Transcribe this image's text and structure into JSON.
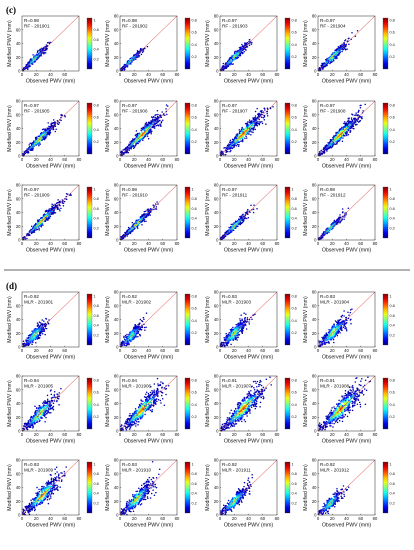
{
  "figure": {
    "sep_line": true,
    "panels": [
      {
        "label": "(c)",
        "model": "RF",
        "subplots": [
          {
            "r": "R=0.98",
            "name": "RF - 201901",
            "density": 0.3,
            "spread": 0.06,
            "cbmax": 1,
            "xticks": [
              "0",
              "20",
              "40",
              "60"
            ],
            "yticks": [
              "0",
              "20",
              "40",
              "60"
            ]
          },
          {
            "r": "R=0.98",
            "name": "RF - 201902",
            "density": 0.22,
            "spread": 0.05,
            "cbmax": 0.8,
            "xticks": [
              "0",
              "20",
              "40",
              "60",
              "80"
            ],
            "yticks": [
              "0",
              "20",
              "40",
              "60",
              "80"
            ]
          },
          {
            "r": "R=0.97",
            "name": "RF - 201903",
            "density": 0.4,
            "spread": 0.07,
            "cbmax": 0.8,
            "xticks": [
              "0",
              "20",
              "40",
              "60",
              "80"
            ],
            "yticks": [
              "0",
              "20",
              "40",
              "60",
              "80"
            ]
          },
          {
            "r": "R=0.97",
            "name": "RF - 201904",
            "density": 0.45,
            "spread": 0.07,
            "cbmax": 0.8,
            "xticks": [
              "0",
              "20",
              "40",
              "60",
              "80"
            ],
            "yticks": [
              "0",
              "20",
              "40",
              "60",
              "80"
            ]
          },
          {
            "r": "R=0.97",
            "name": "RF - 201905",
            "density": 0.6,
            "spread": 0.08,
            "cbmax": 0.8,
            "xticks": [
              "0",
              "20",
              "40",
              "60",
              "80"
            ],
            "yticks": [
              "0",
              "20",
              "40",
              "60",
              "80"
            ]
          },
          {
            "r": "R=0.97",
            "name": "RF - 201906",
            "density": 0.85,
            "spread": 0.09,
            "cbmax": 0.8,
            "xticks": [
              "0",
              "20",
              "40",
              "60",
              "80"
            ],
            "yticks": [
              "0",
              "20",
              "40",
              "60",
              "80"
            ]
          },
          {
            "r": "R=0.97",
            "name": "RF - 201907",
            "density": 0.9,
            "spread": 0.1,
            "cbmax": 0.8,
            "xticks": [
              "0",
              "20",
              "40",
              "60",
              "80"
            ],
            "yticks": [
              "0",
              "20",
              "40",
              "60",
              "80"
            ]
          },
          {
            "r": "R=0.97",
            "name": "RF - 201908",
            "density": 0.85,
            "spread": 0.09,
            "cbmax": 0.8,
            "xticks": [
              "0",
              "20",
              "40",
              "60",
              "80"
            ],
            "yticks": [
              "0",
              "20",
              "40",
              "60",
              "80"
            ]
          },
          {
            "r": "R=0.97",
            "name": "RF - 201909",
            "density": 0.75,
            "spread": 0.07,
            "cbmax": 1,
            "xticks": [
              "0",
              "20",
              "40",
              "60",
              "80"
            ],
            "yticks": [
              "0",
              "20",
              "40",
              "60",
              "80"
            ]
          },
          {
            "r": "R=0.98",
            "name": "RF - 201910",
            "density": 0.55,
            "spread": 0.06,
            "cbmax": 1,
            "xticks": [
              "0",
              "20",
              "40",
              "60",
              "80"
            ],
            "yticks": [
              "0",
              "20",
              "40",
              "60",
              "80"
            ]
          },
          {
            "r": "R=0.97",
            "name": "RF - 201911",
            "density": 0.4,
            "spread": 0.06,
            "cbmax": 1,
            "xticks": [
              "0",
              "20",
              "40",
              "60",
              "80"
            ],
            "yticks": [
              "0",
              "20",
              "40",
              "60",
              "80"
            ]
          },
          {
            "r": "R=0.98",
            "name": "RF - 201912",
            "density": 0.3,
            "spread": 0.05,
            "cbmax": 1,
            "xticks": [
              "0",
              "20",
              "40",
              "60",
              "80"
            ],
            "yticks": [
              "0",
              "20",
              "40",
              "60",
              "80"
            ]
          }
        ]
      },
      {
        "label": "(d)",
        "model": "MLR",
        "subplots": [
          {
            "r": "R=0.92",
            "name": "MLR - 201901",
            "density": 0.3,
            "spread": 0.12,
            "cbmax": 1,
            "xticks": [
              "0",
              "20",
              "40",
              "60"
            ],
            "yticks": [
              "0",
              "20",
              "40",
              "60"
            ]
          },
          {
            "r": "R=0.92",
            "name": "MLR - 201902",
            "density": 0.25,
            "spread": 0.12,
            "cbmax": 0.8,
            "xticks": [
              "0",
              "20",
              "40",
              "60",
              "80"
            ],
            "yticks": [
              "0",
              "20",
              "40",
              "60",
              "80"
            ]
          },
          {
            "r": "R=0.93",
            "name": "MLR - 201903",
            "density": 0.4,
            "spread": 0.13,
            "cbmax": 0.8,
            "xticks": [
              "0",
              "20",
              "40",
              "60",
              "80"
            ],
            "yticks": [
              "0",
              "20",
              "40",
              "60",
              "80"
            ]
          },
          {
            "r": "R=0.93",
            "name": "MLR - 201904",
            "density": 0.45,
            "spread": 0.13,
            "cbmax": 1,
            "xticks": [
              "0",
              "20",
              "40",
              "60",
              "80"
            ],
            "yticks": [
              "0",
              "20",
              "40",
              "60",
              "80"
            ]
          },
          {
            "r": "R=0.94",
            "name": "MLR - 201905",
            "density": 0.6,
            "spread": 0.13,
            "cbmax": 0.8,
            "xticks": [
              "0",
              "20",
              "40",
              "60",
              "80"
            ],
            "yticks": [
              "0",
              "20",
              "40",
              "60",
              "80"
            ]
          },
          {
            "r": "R=0.94",
            "name": "MLR - 201906",
            "density": 0.85,
            "spread": 0.14,
            "cbmax": 0.8,
            "xticks": [
              "0",
              "20",
              "40",
              "60",
              "80"
            ],
            "yticks": [
              "0",
              "20",
              "40",
              "60",
              "80"
            ]
          },
          {
            "r": "R=0.91",
            "name": "MLR - 201907",
            "density": 0.9,
            "spread": 0.15,
            "cbmax": 0.8,
            "xticks": [
              "0",
              "20",
              "40",
              "60",
              "80"
            ],
            "yticks": [
              "0",
              "20",
              "40",
              "60",
              "80"
            ]
          },
          {
            "r": "R=0.91",
            "name": "MLR - 201908",
            "density": 0.9,
            "spread": 0.15,
            "cbmax": 0.8,
            "xticks": [
              "0",
              "20",
              "40",
              "60",
              "80"
            ],
            "yticks": [
              "0",
              "20",
              "40",
              "60",
              "80"
            ]
          },
          {
            "r": "R=0.93",
            "name": "MLR - 201909",
            "density": 0.75,
            "spread": 0.13,
            "cbmax": 1,
            "xticks": [
              "0",
              "20",
              "40",
              "60",
              "80"
            ],
            "yticks": [
              "0",
              "20",
              "40",
              "60",
              "80"
            ]
          },
          {
            "r": "R=0.93",
            "name": "MLR - 201910",
            "density": 0.55,
            "spread": 0.13,
            "cbmax": 1,
            "xticks": [
              "0",
              "20",
              "40",
              "60",
              "80"
            ],
            "yticks": [
              "0",
              "20",
              "40",
              "60",
              "80"
            ]
          },
          {
            "r": "R=0.92",
            "name": "MLR - 201911",
            "density": 0.4,
            "spread": 0.12,
            "cbmax": 1,
            "xticks": [
              "0",
              "20",
              "40",
              "60",
              "80"
            ],
            "yticks": [
              "0",
              "20",
              "40",
              "60",
              "80"
            ]
          },
          {
            "r": "R=0.92",
            "name": "MLR - 201912",
            "density": 0.3,
            "spread": 0.11,
            "cbmax": 1,
            "xticks": [
              "0",
              "20",
              "40",
              "60",
              "80"
            ],
            "yticks": [
              "0",
              "20",
              "40",
              "60",
              "80"
            ]
          }
        ]
      }
    ]
  },
  "chart_data": {
    "type": "scatter",
    "xlabel": "Observed PWV (mm)",
    "ylabel": "Modified PWV (mm)",
    "xlim": [
      0,
      80
    ],
    "ylim": [
      0,
      80
    ],
    "reference_line": "1:1",
    "colormap": "jet",
    "colorbar_ticks_08": [
      "0.2",
      "0.4",
      "0.6",
      "0.8"
    ],
    "colorbar_ticks_1": [
      "0.2",
      "0.4",
      "0.6",
      "0.8",
      "1"
    ],
    "colors": {
      "line": "#e03030",
      "axis": "#222222"
    }
  }
}
